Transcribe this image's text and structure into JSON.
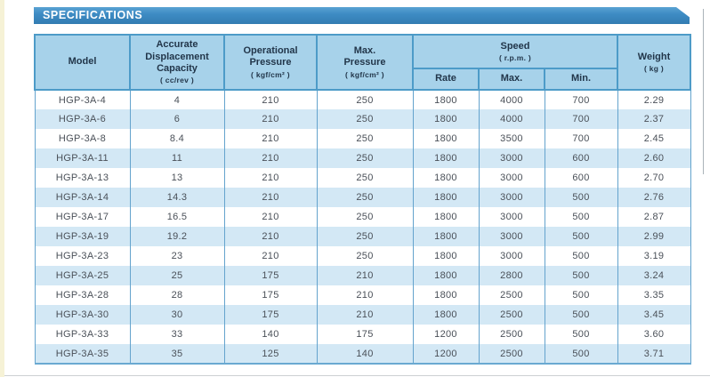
{
  "header": {
    "title": "SPECIFICATIONS"
  },
  "table": {
    "headers": {
      "model": {
        "label": "Model",
        "sub": ""
      },
      "capacity": {
        "label": "Accurate\nDisplacement\nCapacity",
        "sub": "( cc/rev )"
      },
      "op_pressure": {
        "label": "Operational\nPressure",
        "sub": "( kgf/cm² )"
      },
      "max_pressure": {
        "label": "Max.\nPressure",
        "sub": "( kgf/cm² )"
      },
      "speed": {
        "label": "Speed",
        "sub": "( r.p.m. )",
        "children": [
          "Rate",
          "Max.",
          "Min."
        ]
      },
      "weight": {
        "label": "Weight",
        "sub": "( kg )"
      }
    },
    "rows": [
      [
        "HGP-3A-4",
        "4",
        "210",
        "250",
        "1800",
        "4000",
        "700",
        "2.29"
      ],
      [
        "HGP-3A-6",
        "6",
        "210",
        "250",
        "1800",
        "4000",
        "700",
        "2.37"
      ],
      [
        "HGP-3A-8",
        "8.4",
        "210",
        "250",
        "1800",
        "3500",
        "700",
        "2.45"
      ],
      [
        "HGP-3A-11",
        "11",
        "210",
        "250",
        "1800",
        "3000",
        "600",
        "2.60"
      ],
      [
        "HGP-3A-13",
        "13",
        "210",
        "250",
        "1800",
        "3000",
        "600",
        "2.70"
      ],
      [
        "HGP-3A-14",
        "14.3",
        "210",
        "250",
        "1800",
        "3000",
        "500",
        "2.76"
      ],
      [
        "HGP-3A-17",
        "16.5",
        "210",
        "250",
        "1800",
        "3000",
        "500",
        "2.87"
      ],
      [
        "HGP-3A-19",
        "19.2",
        "210",
        "250",
        "1800",
        "3000",
        "500",
        "2.99"
      ],
      [
        "HGP-3A-23",
        "23",
        "210",
        "250",
        "1800",
        "3000",
        "500",
        "3.19"
      ],
      [
        "HGP-3A-25",
        "25",
        "175",
        "210",
        "1800",
        "2800",
        "500",
        "3.24"
      ],
      [
        "HGP-3A-28",
        "28",
        "175",
        "210",
        "1800",
        "2500",
        "500",
        "3.35"
      ],
      [
        "HGP-3A-30",
        "30",
        "175",
        "210",
        "1800",
        "2500",
        "500",
        "3.45"
      ],
      [
        "HGP-3A-33",
        "33",
        "140",
        "175",
        "1200",
        "2500",
        "500",
        "3.60"
      ],
      [
        "HGP-3A-35",
        "35",
        "125",
        "140",
        "1200",
        "2500",
        "500",
        "3.71"
      ]
    ]
  },
  "colors": {
    "banner_blue": "#3e8cc4",
    "header_cell_blue": "#a7d2ea",
    "header_border_blue": "#4d9bc8",
    "row_band_blue": "#d3e8f5",
    "data_grid_blue": "#64a3cd",
    "header_text": "#22364a",
    "data_text": "#4a5058",
    "page_edge_strip": "#f6f2d6"
  }
}
